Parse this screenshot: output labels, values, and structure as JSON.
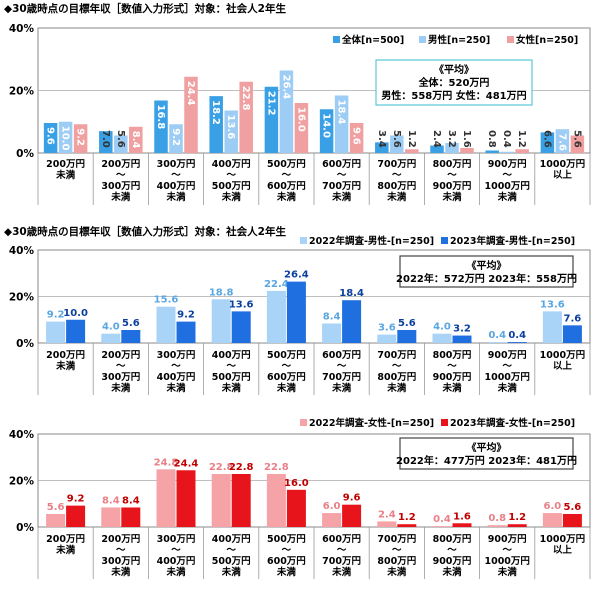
{
  "chart_data": [
    {
      "type": "bar",
      "title": "◆30歳時点の目標年収［数値入力形式］対象：社会人2年生",
      "categories": [
        [
          "200万円",
          "未満"
        ],
        [
          "200万円",
          "～",
          "300万円",
          "未満"
        ],
        [
          "300万円",
          "～",
          "400万円",
          "未満"
        ],
        [
          "400万円",
          "～",
          "500万円",
          "未満"
        ],
        [
          "500万円",
          "～",
          "600万円",
          "未満"
        ],
        [
          "600万円",
          "～",
          "700万円",
          "未満"
        ],
        [
          "700万円",
          "～",
          "800万円",
          "未満"
        ],
        [
          "800万円",
          "～",
          "900万円",
          "未満"
        ],
        [
          "900万円",
          "～",
          "1000万円",
          "未満"
        ],
        [
          "1000万円",
          "以上"
        ]
      ],
      "yticks": [
        "0%",
        "20%",
        "40%"
      ],
      "ylim": [
        0,
        40
      ],
      "series": [
        {
          "name": "全体[n=500]",
          "color": "#3aa0e6",
          "values": [
            9.6,
            7.0,
            16.8,
            18.2,
            21.2,
            14.0,
            3.4,
            2.4,
            0.8,
            6.6
          ]
        },
        {
          "name": "男性[n=250]",
          "color": "#9dcdf4",
          "values": [
            10.0,
            5.6,
            9.2,
            13.6,
            26.4,
            18.4,
            5.6,
            3.2,
            0.4,
            7.6
          ]
        },
        {
          "name": "女性[n=250]",
          "color": "#f0a0a0",
          "values": [
            9.2,
            8.4,
            24.4,
            22.8,
            16.0,
            9.6,
            1.2,
            1.6,
            1.2,
            5.6
          ]
        }
      ],
      "label_position": "inside",
      "annotation": [
        "《平均》",
        "全体：520万円",
        "男性：558万円 女性：481万円"
      ],
      "annotation_border": "#5bc8d8"
    },
    {
      "type": "bar",
      "title": "◆30歳時点の目標年収［数値入力形式］対象：社会人2年生",
      "categories": [
        [
          "200万円",
          "未満"
        ],
        [
          "200万円",
          "～",
          "300万円",
          "未満"
        ],
        [
          "300万円",
          "～",
          "400万円",
          "未満"
        ],
        [
          "400万円",
          "～",
          "500万円",
          "未満"
        ],
        [
          "500万円",
          "～",
          "600万円",
          "未満"
        ],
        [
          "600万円",
          "～",
          "700万円",
          "未満"
        ],
        [
          "700万円",
          "～",
          "800万円",
          "未満"
        ],
        [
          "800万円",
          "～",
          "900万円",
          "未満"
        ],
        [
          "900万円",
          "～",
          "1000万円",
          "未満"
        ],
        [
          "1000万円",
          "以上"
        ]
      ],
      "yticks": [
        "0%",
        "20%",
        "40%"
      ],
      "ylim": [
        0,
        40
      ],
      "series": [
        {
          "name": "2022年調査-男性-[n=250]",
          "color": "#a9d3f7",
          "label_color": "#5aa6e0",
          "values": [
            9.2,
            4.0,
            15.6,
            18.8,
            22.4,
            8.4,
            3.6,
            4.0,
            0.4,
            13.6
          ]
        },
        {
          "name": "2023年調査-男性-[n=250]",
          "color": "#1f6fe0",
          "label_color": "#0b3f9e",
          "values": [
            10.0,
            5.6,
            9.2,
            13.6,
            26.4,
            18.4,
            5.6,
            3.2,
            0.4,
            7.6
          ]
        }
      ],
      "label_position": "above",
      "annotation": [
        "《平均》",
        "2022年：572万円 2023年：558万円"
      ],
      "annotation_border": "#444444"
    },
    {
      "type": "bar",
      "categories": [
        [
          "200万円",
          "未満"
        ],
        [
          "200万円",
          "～",
          "300万円",
          "未満"
        ],
        [
          "300万円",
          "～",
          "400万円",
          "未満"
        ],
        [
          "400万円",
          "～",
          "500万円",
          "未満"
        ],
        [
          "500万円",
          "～",
          "600万円",
          "未満"
        ],
        [
          "600万円",
          "～",
          "700万円",
          "未満"
        ],
        [
          "700万円",
          "～",
          "800万円",
          "未満"
        ],
        [
          "800万円",
          "～",
          "900万円",
          "未満"
        ],
        [
          "900万円",
          "～",
          "1000万円",
          "未満"
        ],
        [
          "1000万円",
          "以上"
        ]
      ],
      "yticks": [
        "0%",
        "20%",
        "40%"
      ],
      "ylim": [
        0,
        40
      ],
      "series": [
        {
          "name": "2022年調査-女性-[n=250]",
          "color": "#f6a3a8",
          "label_color": "#e88088",
          "values": [
            5.6,
            8.4,
            24.8,
            22.8,
            22.8,
            6.0,
            2.4,
            0.4,
            0.8,
            6.0
          ]
        },
        {
          "name": "2023年調査-女性-[n=250]",
          "color": "#e8141c",
          "label_color": "#c00000",
          "values": [
            9.2,
            8.4,
            24.4,
            22.8,
            16.0,
            9.6,
            1.2,
            1.6,
            1.2,
            5.6
          ]
        }
      ],
      "label_position": "above",
      "annotation": [
        "《平均》",
        "2022年：477万円 2023年：481万円"
      ],
      "annotation_border": "#444444"
    }
  ]
}
